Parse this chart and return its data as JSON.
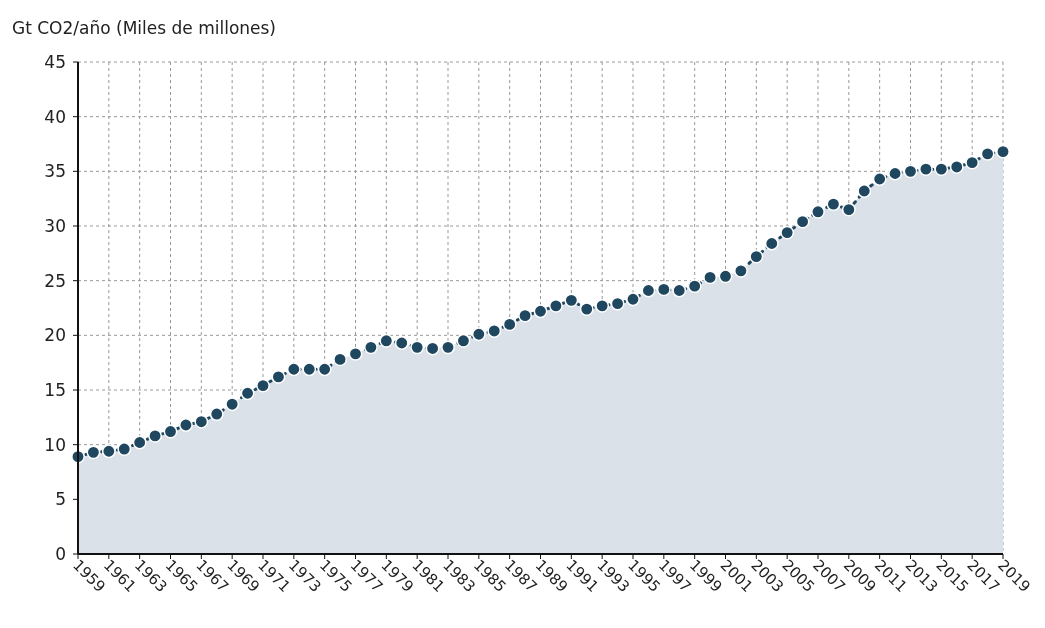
{
  "chart_data": {
    "type": "area",
    "ylabel": "Gt CO2/año (Miles de millones)",
    "x": [
      1959,
      1960,
      1961,
      1962,
      1963,
      1964,
      1965,
      1966,
      1967,
      1968,
      1969,
      1970,
      1971,
      1972,
      1973,
      1974,
      1975,
      1976,
      1977,
      1978,
      1979,
      1980,
      1981,
      1982,
      1983,
      1984,
      1985,
      1986,
      1987,
      1988,
      1989,
      1990,
      1991,
      1992,
      1993,
      1994,
      1995,
      1996,
      1997,
      1998,
      1999,
      2000,
      2001,
      2002,
      2003,
      2004,
      2005,
      2006,
      2007,
      2008,
      2009,
      2010,
      2011,
      2012,
      2013,
      2014,
      2015,
      2016,
      2017,
      2018,
      2019
    ],
    "series": [
      {
        "color": "#1f4760",
        "values": [
          8.9,
          9.3,
          9.4,
          9.6,
          10.2,
          10.8,
          11.2,
          11.8,
          12.1,
          12.8,
          13.7,
          14.7,
          15.4,
          16.2,
          16.9,
          16.9,
          16.9,
          17.8,
          18.3,
          18.9,
          19.5,
          19.3,
          18.9,
          18.8,
          18.9,
          19.5,
          20.1,
          20.4,
          21.0,
          21.8,
          22.2,
          22.7,
          23.2,
          22.4,
          22.7,
          22.9,
          23.3,
          24.1,
          24.2,
          24.1,
          24.5,
          25.3,
          25.4,
          25.9,
          27.2,
          28.4,
          29.4,
          30.4,
          31.3,
          32.0,
          31.5,
          33.2,
          34.3,
          34.8,
          35.0,
          35.2,
          35.2,
          35.4,
          35.8,
          36.6,
          36.8
        ]
      }
    ],
    "xlim": [
      1959,
      2019
    ],
    "xticks": [
      1959,
      1961,
      1963,
      1965,
      1967,
      1969,
      1971,
      1973,
      1975,
      1977,
      1979,
      1981,
      1983,
      1985,
      1987,
      1989,
      1991,
      1993,
      1995,
      1997,
      1999,
      2001,
      2003,
      2005,
      2007,
      2009,
      2011,
      2013,
      2015,
      2017,
      2019
    ],
    "ylim": [
      0,
      45
    ],
    "yticks": [
      0,
      5,
      10,
      15,
      20,
      25,
      30,
      35,
      40,
      45
    ],
    "grid": true,
    "marker": "circle",
    "line_style": "dotted"
  }
}
